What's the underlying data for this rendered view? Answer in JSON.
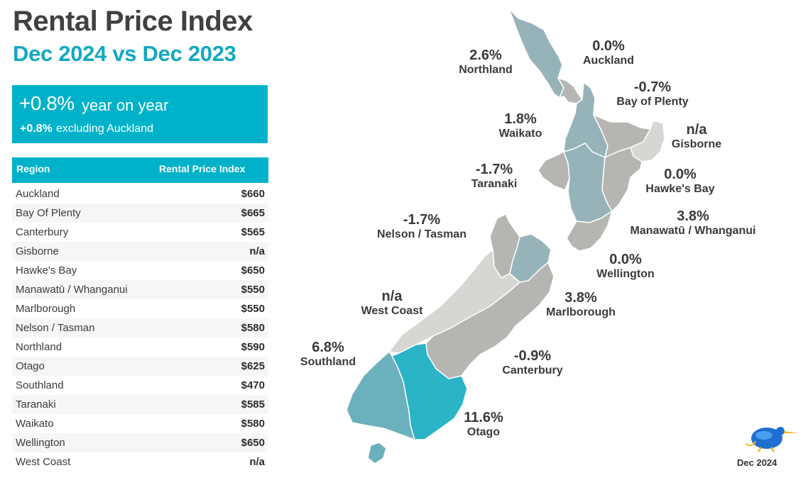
{
  "header": {
    "title": "Rental Price Index",
    "subtitle": "Dec 2024 vs Dec 2023"
  },
  "summary": {
    "change": "+0.8%",
    "change_label": "year on year",
    "excl_change": "+0.8%",
    "excl_label": "excluding Auckland"
  },
  "table": {
    "col_region": "Region",
    "col_index": "Rental Price Index",
    "rows": [
      {
        "region": "Auckland",
        "value": "$660"
      },
      {
        "region": "Bay Of Plenty",
        "value": "$665"
      },
      {
        "region": "Canterbury",
        "value": "$565"
      },
      {
        "region": "Gisborne",
        "value": "n/a"
      },
      {
        "region": "Hawke's Bay",
        "value": "$650"
      },
      {
        "region": "Manawatū / Whanganui",
        "value": "$550"
      },
      {
        "region": "Marlborough",
        "value": "$550"
      },
      {
        "region": "Nelson / Tasman",
        "value": "$580"
      },
      {
        "region": "Northland",
        "value": "$590"
      },
      {
        "region": "Otago",
        "value": "$625"
      },
      {
        "region": "Southland",
        "value": "$470"
      },
      {
        "region": "Taranaki",
        "value": "$585"
      },
      {
        "region": "Waikato",
        "value": "$580"
      },
      {
        "region": "Wellington",
        "value": "$650"
      },
      {
        "region": "West Coast",
        "value": "n/a"
      }
    ]
  },
  "map_labels": {
    "northland": {
      "pct": "2.6%",
      "name": "Northland"
    },
    "auckland": {
      "pct": "0.0%",
      "name": "Auckland"
    },
    "bay_of_plenty": {
      "pct": "-0.7%",
      "name": "Bay of Plenty"
    },
    "waikato": {
      "pct": "1.8%",
      "name": "Waikato"
    },
    "gisborne": {
      "pct": "n/a",
      "name": "Gisborne"
    },
    "taranaki": {
      "pct": "-1.7%",
      "name": "Taranaki"
    },
    "hawkes_bay": {
      "pct": "0.0%",
      "name": "Hawke's Bay"
    },
    "nelson_tasman": {
      "pct": "-1.7%",
      "name": "Nelson / Tasman"
    },
    "manawatu": {
      "pct": "3.8%",
      "name": "Manawatū / Whanganui"
    },
    "wellington": {
      "pct": "0.0%",
      "name": "Wellington"
    },
    "west_coast": {
      "pct": "n/a",
      "name": "West Coast"
    },
    "marlborough": {
      "pct": "3.8%",
      "name": "Marlborough"
    },
    "southland": {
      "pct": "6.8%",
      "name": "Southland"
    },
    "canterbury": {
      "pct": "-0.9%",
      "name": "Canterbury"
    },
    "otago": {
      "pct": "11.6%",
      "name": "Otago"
    }
  },
  "footer": {
    "date": "Dec 2024"
  },
  "colors": {
    "accent": "#00b2c9",
    "title": "#404040",
    "otago": "#2bb3c6",
    "southland": "#6ab1bd",
    "grey_blue": "#97b3ba",
    "grey": "#b5b5b1",
    "light": "#d6d6d3"
  }
}
